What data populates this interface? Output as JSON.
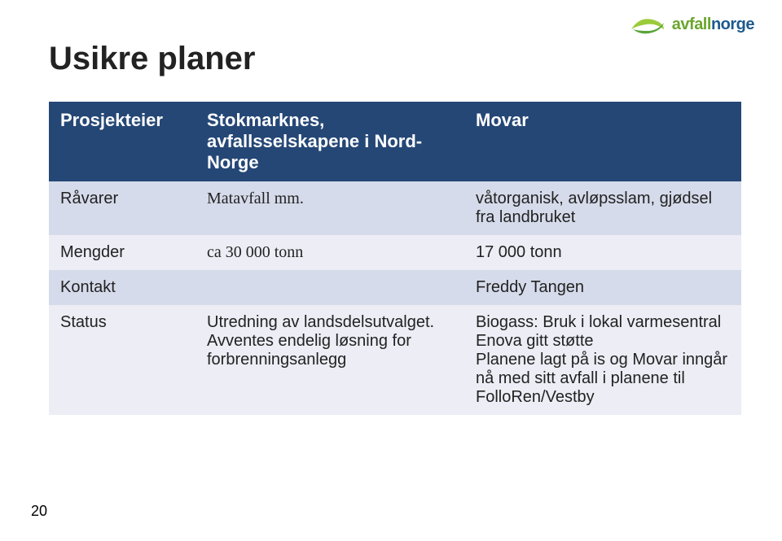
{
  "colors": {
    "header_bg": "#254776",
    "row_even": "#d6dbeb",
    "row_odd": "#ecedf5",
    "text": "#222222",
    "logo_green_light": "#9ccb3b",
    "logo_green_dark": "#5aa43a",
    "logo_text_green": "#6aa62e",
    "logo_text_blue": "#1e5a8f"
  },
  "logo": {
    "text_part1": "avfall",
    "text_part2": "norge"
  },
  "title": "Usikre planer",
  "page_number": "20",
  "table": {
    "headers": {
      "label": "Prosjekteier",
      "col_a": "Stokmarknes, avfallsselskapene i Nord-Norge",
      "col_b": "Movar"
    },
    "rows": [
      {
        "label": "Råvarer",
        "a": "Matavfall mm.",
        "a_serif": true,
        "b": "våtorganisk, avløpsslam, gjødsel fra landbruket"
      },
      {
        "label": "Mengder",
        "a": "ca 30 000 tonn",
        "a_serif": true,
        "b": " 17 000 tonn"
      },
      {
        "label": "Kontakt",
        "a": "",
        "b": "Freddy Tangen"
      },
      {
        "label": "Status",
        "a": "Utredning av landsdelsutvalget. Avventes endelig løsning for forbrenningsanlegg",
        "b": "Biogass: Bruk i lokal varmesentral\nEnova gitt støtte\nPlanene lagt på is og Movar inngår nå med sitt avfall i planene til FolloRen/Vestby"
      }
    ]
  }
}
